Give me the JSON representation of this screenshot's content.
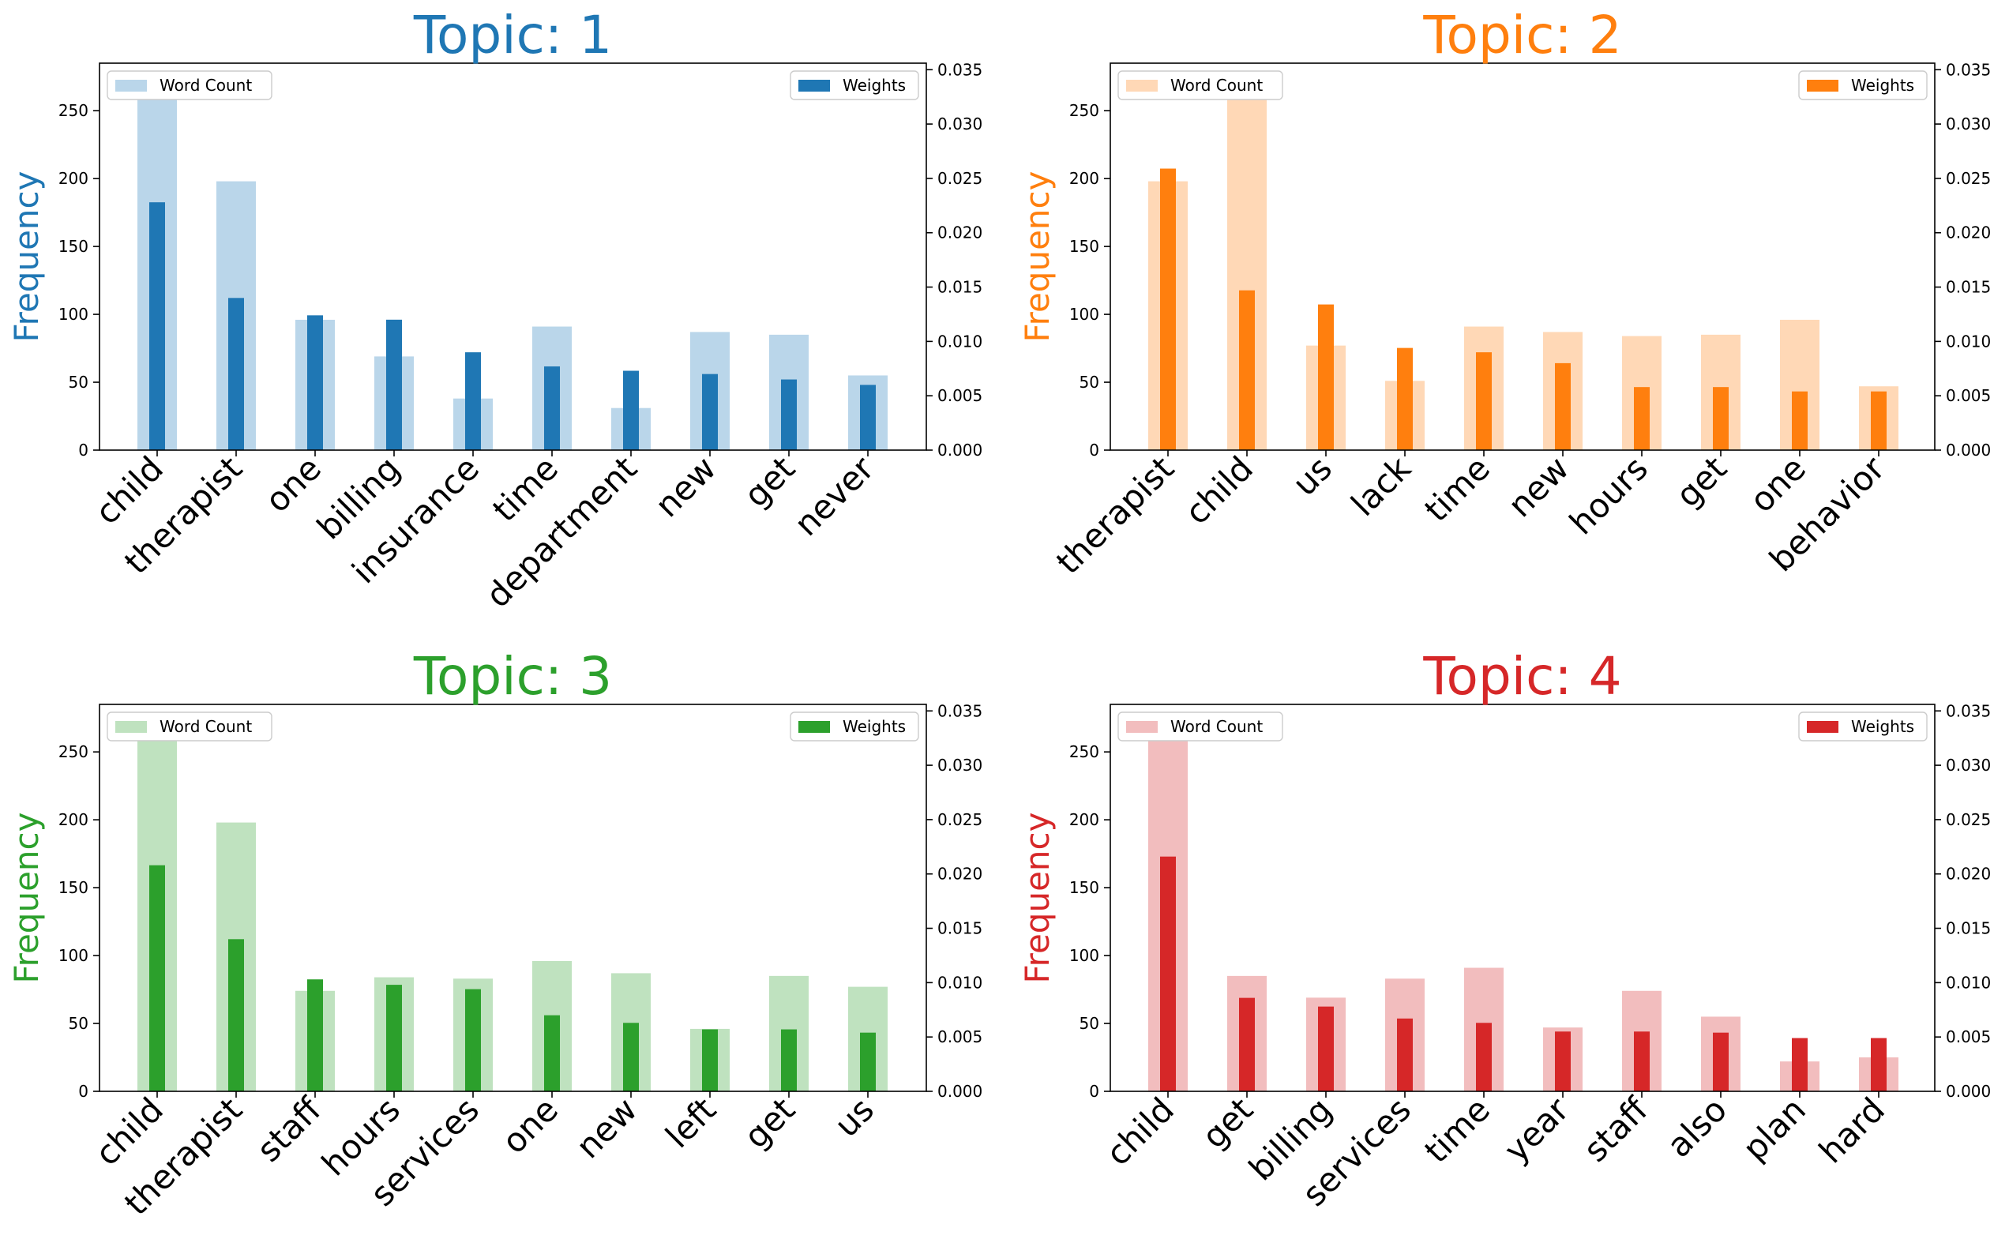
{
  "chart_data": [
    {
      "type": "bar",
      "title": "Topic: 1",
      "color": "#1f77b4",
      "light_color": "#bad6ea",
      "ylabel": "Frequency",
      "ylim": [
        0,
        285
      ],
      "ylim_right": [
        0,
        0.0356
      ],
      "yticks": [
        0,
        50,
        100,
        150,
        200,
        250
      ],
      "yticks_right": [
        "0.000",
        "0.005",
        "0.010",
        "0.015",
        "0.020",
        "0.025",
        "0.030",
        "0.035"
      ],
      "legend_left": "Word Count",
      "legend_right": "Weights",
      "categories": [
        "child",
        "therapist",
        "one",
        "billing",
        "insurance",
        "time",
        "department",
        "new",
        "get",
        "never"
      ],
      "series": [
        {
          "name": "Word Count",
          "values": [
            268,
            198,
            96,
            69,
            38,
            91,
            31,
            87,
            85,
            55
          ]
        },
        {
          "name": "Weights",
          "values": [
            0.0228,
            0.014,
            0.0124,
            0.012,
            0.009,
            0.0077,
            0.0073,
            0.007,
            0.0065,
            0.006
          ]
        }
      ]
    },
    {
      "type": "bar",
      "title": "Topic: 2",
      "color": "#ff7f0e",
      "light_color": "#ffd8b6",
      "ylabel": "Frequency",
      "ylim": [
        0,
        285
      ],
      "ylim_right": [
        0,
        0.0356
      ],
      "yticks": [
        0,
        50,
        100,
        150,
        200,
        250
      ],
      "yticks_right": [
        "0.000",
        "0.005",
        "0.010",
        "0.015",
        "0.020",
        "0.025",
        "0.030",
        "0.035"
      ],
      "legend_left": "Word Count",
      "legend_right": "Weights",
      "categories": [
        "therapist",
        "child",
        "us",
        "lack",
        "time",
        "new",
        "hours",
        "get",
        "one",
        "behavior"
      ],
      "series": [
        {
          "name": "Word Count",
          "values": [
            198,
            268,
            77,
            51,
            91,
            87,
            84,
            85,
            96,
            47
          ]
        },
        {
          "name": "Weights",
          "values": [
            0.0259,
            0.0147,
            0.0134,
            0.0094,
            0.009,
            0.008,
            0.0058,
            0.0058,
            0.0054,
            0.0054
          ]
        }
      ]
    },
    {
      "type": "bar",
      "title": "Topic: 3",
      "color": "#2ca02c",
      "light_color": "#bfe2bf",
      "ylabel": "Frequency",
      "ylim": [
        0,
        285
      ],
      "ylim_right": [
        0,
        0.0356
      ],
      "yticks": [
        0,
        50,
        100,
        150,
        200,
        250
      ],
      "yticks_right": [
        "0.000",
        "0.005",
        "0.010",
        "0.015",
        "0.020",
        "0.025",
        "0.030",
        "0.035"
      ],
      "legend_left": "Word Count",
      "legend_right": "Weights",
      "categories": [
        "child",
        "therapist",
        "staff",
        "hours",
        "services",
        "one",
        "new",
        "left",
        "get",
        "us"
      ],
      "series": [
        {
          "name": "Word Count",
          "values": [
            268,
            198,
            74,
            84,
            83,
            96,
            87,
            46,
            85,
            77
          ]
        },
        {
          "name": "Weights",
          "values": [
            0.0208,
            0.014,
            0.0103,
            0.0098,
            0.0094,
            0.007,
            0.0063,
            0.0057,
            0.0057,
            0.0054
          ]
        }
      ]
    },
    {
      "type": "bar",
      "title": "Topic: 4",
      "color": "#d62728",
      "light_color": "#f2bdbe",
      "ylabel": "Frequency",
      "ylim": [
        0,
        285
      ],
      "ylim_right": [
        0,
        0.0356
      ],
      "yticks": [
        0,
        50,
        100,
        150,
        200,
        250
      ],
      "yticks_right": [
        "0.000",
        "0.005",
        "0.010",
        "0.015",
        "0.020",
        "0.025",
        "0.030",
        "0.035"
      ],
      "legend_left": "Word Count",
      "legend_right": "Weights",
      "categories": [
        "child",
        "get",
        "billing",
        "services",
        "time",
        "year",
        "staff",
        "also",
        "plan",
        "hard"
      ],
      "series": [
        {
          "name": "Word Count",
          "values": [
            268,
            85,
            69,
            83,
            91,
            47,
            74,
            55,
            22,
            25
          ]
        },
        {
          "name": "Weights",
          "values": [
            0.0216,
            0.0086,
            0.0078,
            0.0067,
            0.0063,
            0.0055,
            0.0055,
            0.0054,
            0.0049,
            0.0049
          ]
        }
      ]
    }
  ]
}
